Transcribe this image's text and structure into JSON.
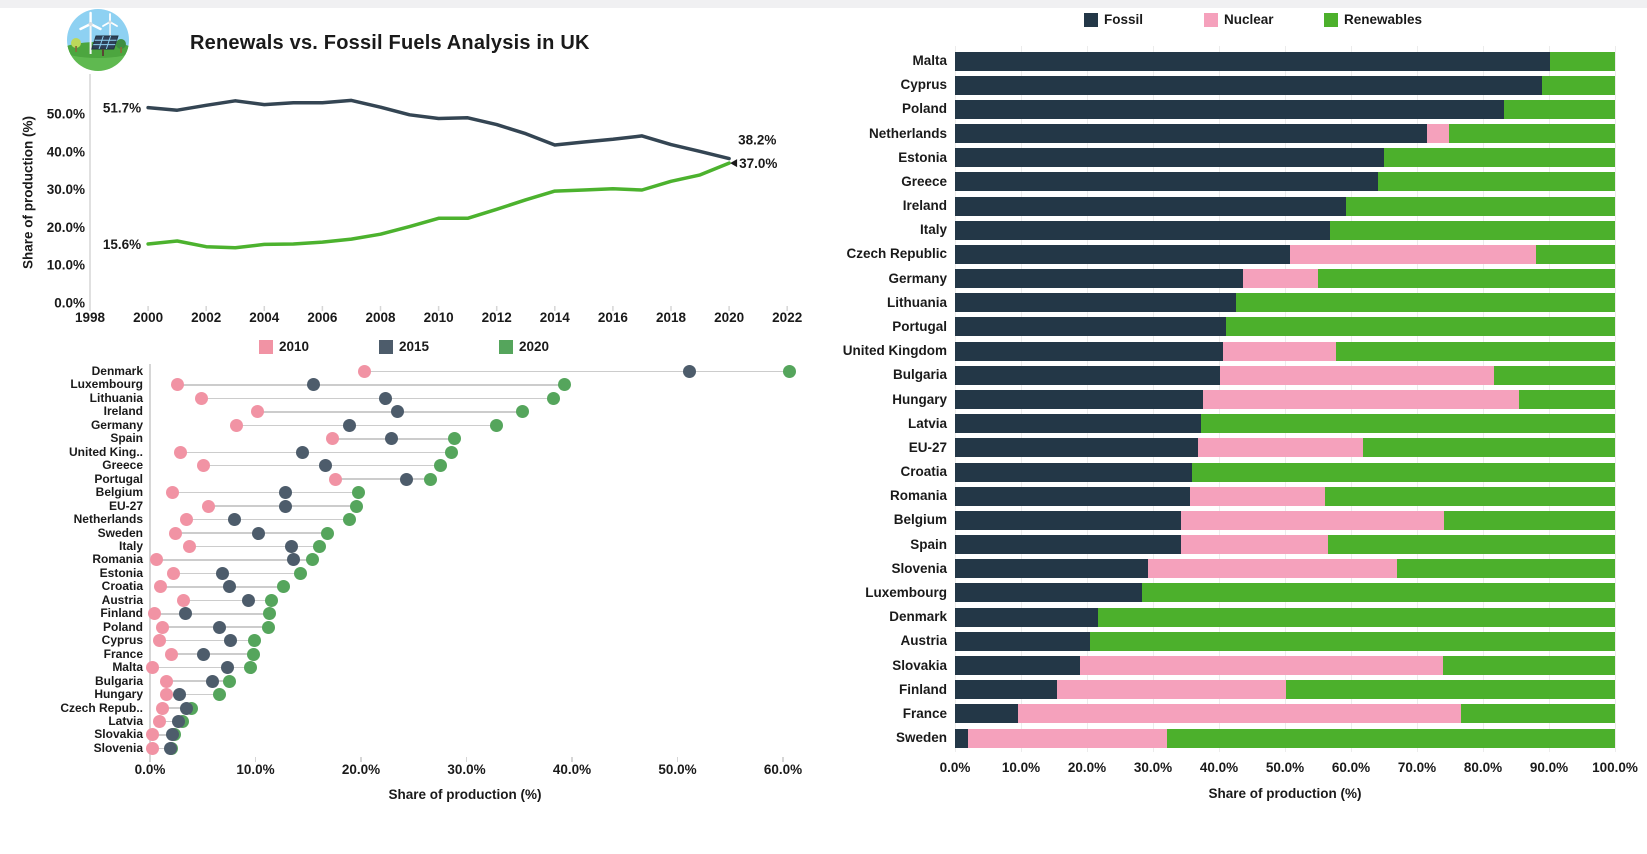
{
  "header": {
    "title": "Renewals vs. Fossil Fuels Analysis in UK",
    "icon": "wind-solar-icon"
  },
  "colors": {
    "fossil_bar": "#233747",
    "nuclear_bar": "#F5A1BC",
    "renewables_bar": "#4CB02C",
    "fossil_line": "#344553",
    "renewables_line": "#4CB22E",
    "dot_2010": "#F193A4",
    "dot_2015": "#4D5C6B",
    "dot_2020": "#55A55C",
    "axis_text": "#1a1a1a",
    "grid": "#ECECEC",
    "axis_line": "#D6D6D6",
    "connector": "#CCCCCC"
  },
  "chart_data": [
    {
      "id": "uk-trend",
      "type": "line",
      "title": "Renewals vs. Fossil Fuels Analysis in UK",
      "ylabel": "Share of production (%)",
      "xlim": [
        1998,
        2022
      ],
      "ylim": [
        0,
        58
      ],
      "grid": false,
      "x": [
        2000,
        2001,
        2002,
        2003,
        2004,
        2005,
        2006,
        2007,
        2008,
        2009,
        2010,
        2011,
        2012,
        2013,
        2014,
        2015,
        2016,
        2017,
        2018,
        2019,
        2020
      ],
      "series": [
        {
          "name": "Fossil",
          "color_key": "fossil_line",
          "values": [
            51.7,
            51.0,
            52.3,
            53.5,
            52.5,
            53.0,
            53.0,
            53.6,
            51.8,
            49.8,
            48.8,
            49.0,
            47.2,
            44.8,
            41.8,
            42.6,
            43.3,
            44.2,
            41.9,
            40.1,
            38.2
          ]
        },
        {
          "name": "Renewables",
          "color_key": "renewables_line",
          "values": [
            15.6,
            16.4,
            14.9,
            14.6,
            15.5,
            15.6,
            16.1,
            16.9,
            18.2,
            20.2,
            22.4,
            22.4,
            24.8,
            27.3,
            29.6,
            29.9,
            30.2,
            29.9,
            32.2,
            33.9,
            37.0
          ]
        }
      ],
      "x_ticks": [
        "1998",
        "2000",
        "2002",
        "2004",
        "2006",
        "2008",
        "2010",
        "2012",
        "2014",
        "2016",
        "2018",
        "2020",
        "2022"
      ],
      "y_ticks": [
        "0.0%",
        "10.0%",
        "20.0%",
        "30.0%",
        "40.0%",
        "50.0%"
      ],
      "annotations": [
        {
          "text": "51.7%",
          "year": 2000,
          "value": 51.7,
          "side": "left"
        },
        {
          "text": "15.6%",
          "year": 2000,
          "value": 15.6,
          "side": "left"
        },
        {
          "text": "38.2%",
          "year": 2020,
          "value": 38.2,
          "side": "right-above"
        },
        {
          "text": "37.0%",
          "year": 2020,
          "value": 37.0,
          "side": "right-arrow"
        }
      ]
    },
    {
      "id": "renewables-by-country-dumbbell",
      "type": "scatter",
      "variant": "dumbbell",
      "xlabel": "Share of production (%)",
      "xlim": [
        0,
        60
      ],
      "x_ticks": [
        "0.0%",
        "10.0%",
        "20.0%",
        "30.0%",
        "40.0%",
        "50.0%",
        "60.0%"
      ],
      "legend_position": "top",
      "categories": [
        "Denmark",
        "Luxembourg",
        "Lithuania",
        "Ireland",
        "Germany",
        "Spain",
        "United King..",
        "Greece",
        "Portugal",
        "Belgium",
        "EU-27",
        "Netherlands",
        "Sweden",
        "Italy",
        "Romania",
        "Estonia",
        "Croatia",
        "Austria",
        "Finland",
        "Poland",
        "Cyprus",
        "France",
        "Malta",
        "Bulgaria",
        "Hungary",
        "Czech Repub..",
        "Latvia",
        "Slovakia",
        "Slovenia"
      ],
      "series": [
        {
          "name": "2010",
          "color_key": "dot_2010",
          "values": [
            20.3,
            2.6,
            4.9,
            10.2,
            8.2,
            17.3,
            2.9,
            5.1,
            17.6,
            2.1,
            5.5,
            3.5,
            2.4,
            3.7,
            0.6,
            2.2,
            1.0,
            3.2,
            0.4,
            1.2,
            0.9,
            2.0,
            0.2,
            1.6,
            1.6,
            1.2,
            0.9,
            0.2,
            0.2
          ]
        },
        {
          "name": "2015",
          "color_key": "dot_2015",
          "values": [
            51.1,
            15.5,
            22.3,
            23.5,
            18.9,
            22.9,
            14.5,
            16.6,
            24.3,
            12.8,
            12.8,
            8.0,
            10.3,
            13.4,
            13.6,
            6.9,
            7.5,
            9.3,
            3.4,
            6.6,
            7.6,
            5.1,
            7.3,
            5.9,
            2.8,
            3.5,
            2.7,
            2.1,
            1.9
          ]
        },
        {
          "name": "2020",
          "color_key": "dot_2020",
          "values": [
            60.6,
            39.3,
            38.2,
            35.3,
            32.8,
            28.9,
            28.6,
            27.5,
            26.6,
            19.8,
            19.6,
            18.9,
            16.8,
            16.1,
            15.4,
            14.3,
            12.7,
            11.5,
            11.3,
            11.2,
            9.9,
            9.8,
            9.5,
            7.5,
            6.6,
            3.9,
            3.1,
            2.3,
            2.0
          ]
        }
      ]
    },
    {
      "id": "energy-mix-by-country",
      "type": "bar",
      "orientation": "horizontal",
      "stacked": true,
      "xlabel": "Share of production (%)",
      "xlim": [
        0,
        100
      ],
      "grid": true,
      "x_ticks": [
        "0.0%",
        "10.0%",
        "20.0%",
        "30.0%",
        "40.0%",
        "50.0%",
        "60.0%",
        "70.0%",
        "80.0%",
        "90.0%",
        "100.0%"
      ],
      "legend_position": "top",
      "categories": [
        "Malta",
        "Cyprus",
        "Poland",
        "Netherlands",
        "Estonia",
        "Greece",
        "Ireland",
        "Italy",
        "Czech Republic",
        "Germany",
        "Lithuania",
        "Portugal",
        "United Kingdom",
        "Bulgaria",
        "Hungary",
        "Latvia",
        "EU-27",
        "Croatia",
        "Romania",
        "Belgium",
        "Spain",
        "Slovenia",
        "Luxembourg",
        "Denmark",
        "Austria",
        "Slovakia",
        "Finland",
        "France",
        "Sweden"
      ],
      "series": [
        {
          "name": "Fossil",
          "color_key": "fossil_bar",
          "values": [
            90.1,
            88.9,
            83.2,
            71.5,
            65.0,
            64.1,
            59.3,
            56.8,
            50.7,
            43.6,
            42.5,
            41.0,
            40.6,
            40.1,
            37.6,
            37.2,
            36.8,
            35.9,
            35.6,
            34.3,
            34.3,
            29.3,
            28.3,
            21.6,
            20.5,
            19.0,
            15.5,
            9.5,
            2.0
          ]
        },
        {
          "name": "Nuclear",
          "color_key": "nuclear_bar",
          "values": [
            0,
            0,
            0,
            3.3,
            0,
            0,
            0,
            0,
            37.4,
            11.4,
            0,
            0,
            17.1,
            41.5,
            47.9,
            0,
            25.0,
            0,
            20.5,
            39.8,
            22.2,
            37.6,
            0,
            0,
            0,
            54.9,
            34.7,
            67.1,
            30.1
          ]
        },
        {
          "name": "Renewables",
          "color_key": "renewables_bar",
          "values": [
            9.9,
            11.1,
            16.8,
            25.2,
            35.0,
            35.9,
            40.7,
            43.2,
            11.9,
            45.0,
            57.5,
            59.0,
            42.3,
            18.4,
            14.5,
            62.8,
            38.2,
            64.1,
            43.9,
            25.9,
            43.5,
            33.1,
            71.7,
            78.4,
            79.5,
            26.1,
            49.8,
            23.4,
            67.9
          ]
        }
      ]
    }
  ]
}
